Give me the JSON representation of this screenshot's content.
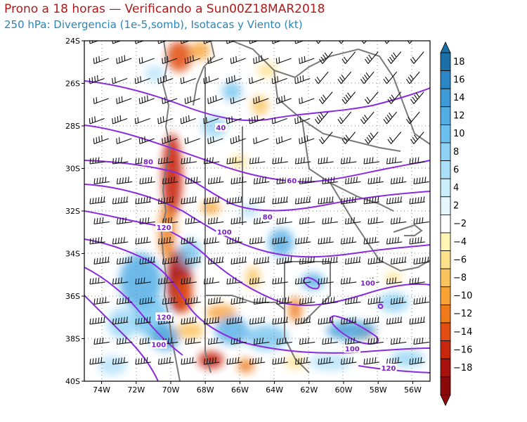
{
  "title_line1": "Prono a 18 horas — Verificando a Sun00Z18MAR2018",
  "title_line2": "250 hPa: Divergencia (1e-5,somb), Isotacas y Viento (kt)",
  "map": {
    "lat_labels": [
      "24S",
      "26S",
      "28S",
      "30S",
      "32S",
      "34S",
      "36S",
      "38S",
      "40S"
    ],
    "lon_labels": [
      "74W",
      "72W",
      "70W",
      "68W",
      "66W",
      "64W",
      "62W",
      "60W",
      "58W",
      "56W"
    ],
    "lat_range": [
      -40,
      -24
    ],
    "lon_range": [
      -75,
      -55
    ],
    "isotach_labels": [
      {
        "text": "40",
        "lon": -67.1,
        "lat": -28.1
      },
      {
        "text": "80",
        "lon": -71.3,
        "lat": -29.7
      },
      {
        "text": "60",
        "lon": -63.0,
        "lat": -30.6
      },
      {
        "text": "80",
        "lon": -64.4,
        "lat": -32.3
      },
      {
        "text": "120",
        "lon": -70.4,
        "lat": -32.8
      },
      {
        "text": "100",
        "lon": -66.9,
        "lat": -33.0
      },
      {
        "text": "100",
        "lon": -58.6,
        "lat": -35.4
      },
      {
        "text": "120",
        "lon": -70.4,
        "lat": -37.0
      },
      {
        "text": "100",
        "lon": -70.7,
        "lat": -38.3
      },
      {
        "text": "100",
        "lon": -59.5,
        "lat": -38.5
      },
      {
        "text": "120",
        "lon": -57.4,
        "lat": -39.4
      }
    ],
    "features": {
      "field": "divergence-shading",
      "contours": "isotachs",
      "vectors": "wind-barbs",
      "overlay": "political-boundaries"
    }
  },
  "colorbar": {
    "labels": [
      "18",
      "16",
      "14",
      "12",
      "10",
      "8",
      "6",
      "4",
      "2",
      "−2",
      "−4",
      "−6",
      "−8",
      "−10",
      "−12",
      "−14",
      "−16",
      "−18"
    ],
    "colors": [
      "#1b6fa8",
      "#2a86c4",
      "#3c9ad6",
      "#54aee6",
      "#6cc0ef",
      "#8dd1f5",
      "#acdff8",
      "#cbeefb",
      "#e6f8fd",
      "#ffffff",
      "#fff4b3",
      "#fde08a",
      "#fbc35d",
      "#f7a232",
      "#ef7a1b",
      "#e04e13",
      "#c9260e",
      "#a9110c",
      "#8a0a0a"
    ]
  }
}
